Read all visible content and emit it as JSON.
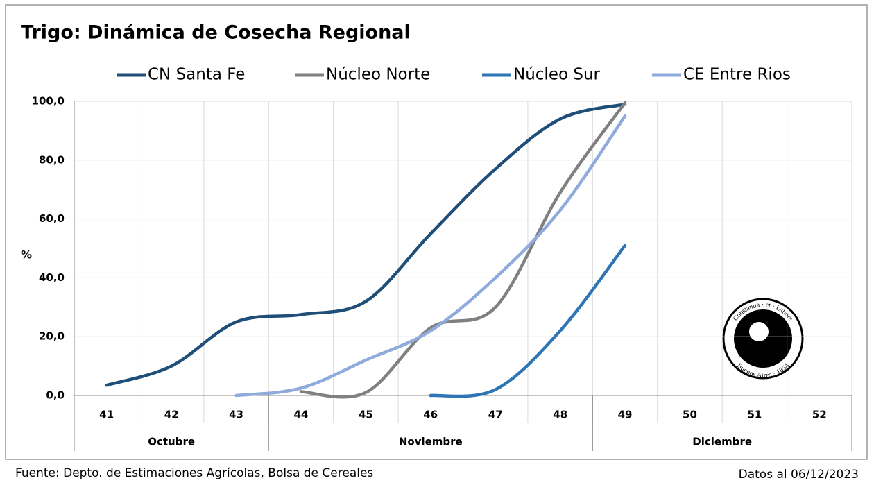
{
  "chart_data": {
    "type": "line",
    "title": "Trigo: Dinámica de Cosecha Regional",
    "y_label": "%",
    "categories": [
      "41",
      "42",
      "43",
      "44",
      "45",
      "46",
      "47",
      "48",
      "49",
      "50",
      "51",
      "52"
    ],
    "groups": [
      {
        "label": "Octubre",
        "count": 3
      },
      {
        "label": "Noviembre",
        "count": 5
      },
      {
        "label": "Diciembre",
        "count": 4
      }
    ],
    "series": [
      {
        "name": "CN Santa Fe",
        "color": "#1f4e79",
        "values": [
          3.5,
          10,
          25,
          27.5,
          32,
          55,
          77,
          94,
          99,
          null,
          null,
          null
        ]
      },
      {
        "name": "Núcleo Norte",
        "color": "#808080",
        "values": [
          null,
          null,
          null,
          1.3,
          1,
          23,
          30,
          69,
          99.5,
          null,
          null,
          null
        ]
      },
      {
        "name": "Núcleo Sur",
        "color": "#2e75b6",
        "values": [
          null,
          null,
          null,
          null,
          null,
          0,
          2,
          22,
          51,
          null,
          null,
          null
        ]
      },
      {
        "name": "CE Entre Rios",
        "color": "#8faadc",
        "values": [
          null,
          null,
          0,
          2.5,
          12,
          22,
          40,
          63,
          95,
          null,
          null,
          null
        ]
      }
    ],
    "ylim": [
      0,
      100
    ],
    "yticks": [
      {
        "value": 0,
        "label": "0,0"
      },
      {
        "value": 20,
        "label": "20,0"
      },
      {
        "value": 40,
        "label": "40,0"
      },
      {
        "value": 60,
        "label": "60,0"
      },
      {
        "value": 80,
        "label": "80,0"
      },
      {
        "value": 100,
        "label": "100,0"
      }
    ],
    "grid": true,
    "legend": "top",
    "source": "Fuente: Depto. de Estimaciones Agrícolas, Bolsa de Cereales",
    "date_note": "Datos al 06/12/2023",
    "logo_text": [
      "Constantia · et · Labore",
      "Buenos Aires · 1854"
    ]
  }
}
